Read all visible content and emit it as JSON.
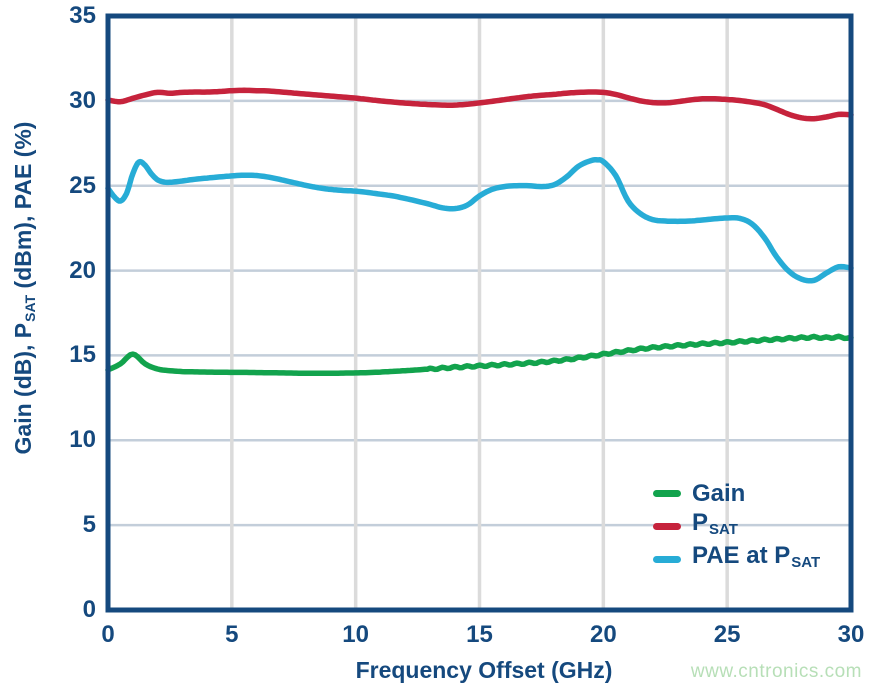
{
  "watermark": {
    "text": "www.cntronics.com",
    "color": "#B7DFB7"
  },
  "colors": {
    "navy": "#15497E",
    "grid_horizontal": "#C3CEDA",
    "grid_vertical": "#DBDBDB",
    "background": "#FFFFFF",
    "gain_green": "#12A34D",
    "psat_red": "#C6233C",
    "pae_blue": "#27ACD6"
  },
  "chart_data": {
    "type": "line",
    "title": "",
    "xlabel": "Frequency Offset (GHz)",
    "ylabel": "Gain (dB), PSAT (dBm), PAE (%)",
    "ylabel_parts": [
      {
        "t": "Gain (dB), P"
      },
      {
        "t": "SAT",
        "sub": true
      },
      {
        "t": " (dBm), PAE (%)"
      }
    ],
    "xlim": [
      0,
      30
    ],
    "ylim": [
      0,
      35
    ],
    "xticks": [
      0,
      5,
      10,
      15,
      20,
      25,
      30
    ],
    "yticks": [
      0,
      5,
      10,
      15,
      20,
      25,
      30,
      35
    ],
    "grid": true,
    "legend": {
      "position": "lower-right",
      "entries": [
        {
          "id": "gain",
          "label": "Gain",
          "parts": [
            {
              "t": "Gain"
            }
          ],
          "color": "#12A34D"
        },
        {
          "id": "psat",
          "label": "PSAT",
          "parts": [
            {
              "t": "P"
            },
            {
              "t": "SAT",
              "sub": true
            }
          ],
          "color": "#C6233C"
        },
        {
          "id": "pae",
          "label": "PAE at PSAT",
          "parts": [
            {
              "t": "PAE at P"
            },
            {
              "t": "SAT",
              "sub": true
            }
          ],
          "color": "#27ACD6"
        }
      ]
    },
    "series": [
      {
        "id": "psat",
        "name": "PSAT",
        "color": "#C6233C",
        "x": [
          0,
          0.5,
          1,
          1.5,
          2,
          2.5,
          3,
          3.5,
          4,
          4.5,
          5,
          5.5,
          6,
          6.5,
          7,
          7.5,
          8,
          8.5,
          9,
          9.5,
          10,
          10.5,
          11,
          11.5,
          12,
          12.5,
          13,
          13.5,
          14,
          14.5,
          15,
          15.5,
          16,
          16.5,
          17,
          17.5,
          18,
          18.5,
          19,
          19.5,
          20,
          20.5,
          21,
          21.5,
          22,
          22.5,
          23,
          23.5,
          24,
          24.5,
          25,
          25.5,
          26,
          26.5,
          27,
          27.5,
          28,
          28.5,
          29,
          29.5,
          30
        ],
        "y": [
          30.05,
          29.95,
          30.15,
          30.35,
          30.5,
          30.45,
          30.5,
          30.52,
          30.52,
          30.55,
          30.6,
          30.62,
          30.6,
          30.58,
          30.52,
          30.46,
          30.4,
          30.34,
          30.28,
          30.22,
          30.16,
          30.08,
          30.0,
          29.93,
          29.87,
          29.82,
          29.78,
          29.75,
          29.75,
          29.8,
          29.88,
          29.97,
          30.07,
          30.17,
          30.26,
          30.33,
          30.38,
          30.45,
          30.5,
          30.52,
          30.5,
          30.38,
          30.18,
          30.0,
          29.9,
          29.88,
          29.95,
          30.05,
          30.12,
          30.12,
          30.08,
          30.02,
          29.92,
          29.78,
          29.5,
          29.2,
          29.0,
          28.95,
          29.05,
          29.2,
          29.18
        ]
      },
      {
        "id": "pae",
        "name": "PAE at PSAT",
        "color": "#27ACD6",
        "x": [
          0,
          0.25,
          0.5,
          0.75,
          1,
          1.25,
          1.5,
          1.75,
          2,
          2.25,
          2.5,
          3,
          3.5,
          4,
          4.5,
          5,
          5.5,
          6,
          6.5,
          7,
          7.5,
          8,
          8.5,
          9,
          9.5,
          10,
          10.5,
          11,
          11.5,
          12,
          12.5,
          13,
          13.5,
          14,
          14.5,
          15,
          15.5,
          16,
          16.5,
          17,
          17.5,
          18,
          18.5,
          19,
          19.5,
          19.75,
          20,
          20.5,
          21,
          21.5,
          22,
          22.5,
          23,
          23.5,
          24,
          24.5,
          25,
          25.5,
          26,
          26.5,
          27,
          27.5,
          28,
          28.5,
          29,
          29.5,
          30
        ],
        "y": [
          24.85,
          24.35,
          24.1,
          24.55,
          25.7,
          26.4,
          26.2,
          25.7,
          25.35,
          25.22,
          25.2,
          25.28,
          25.38,
          25.45,
          25.52,
          25.58,
          25.62,
          25.6,
          25.5,
          25.35,
          25.18,
          25.02,
          24.88,
          24.78,
          24.72,
          24.68,
          24.6,
          24.5,
          24.4,
          24.25,
          24.08,
          23.9,
          23.7,
          23.65,
          23.85,
          24.4,
          24.78,
          24.95,
          25.0,
          25.0,
          24.95,
          25.05,
          25.5,
          26.15,
          26.48,
          26.52,
          26.42,
          25.6,
          24.1,
          23.35,
          23.0,
          22.92,
          22.9,
          22.92,
          22.98,
          23.05,
          23.1,
          23.08,
          22.75,
          21.95,
          20.8,
          19.95,
          19.5,
          19.42,
          19.85,
          20.22,
          20.15
        ]
      },
      {
        "id": "gain",
        "name": "Gain",
        "color": "#12A34D",
        "x": [
          0,
          0.5,
          1,
          1.5,
          2,
          2.5,
          3,
          3.5,
          4,
          4.5,
          5,
          5.5,
          6,
          6.5,
          7,
          7.5,
          8,
          8.5,
          9,
          9.5,
          10,
          10.5,
          11,
          11.5,
          12,
          12.5,
          13,
          13.5,
          14,
          14.5,
          15,
          15.5,
          16,
          16.5,
          17,
          17.5,
          18,
          18.5,
          19,
          19.5,
          20,
          20.5,
          21,
          21.5,
          22,
          22.5,
          23,
          23.5,
          24,
          24.5,
          25,
          25.5,
          26,
          26.5,
          27,
          27.5,
          28,
          28.5,
          29,
          29.5,
          30
        ],
        "y": [
          14.15,
          14.5,
          15.08,
          14.5,
          14.2,
          14.1,
          14.05,
          14.03,
          14.02,
          14.01,
          14.0,
          14.0,
          13.99,
          13.98,
          13.97,
          13.96,
          13.95,
          13.95,
          13.95,
          13.96,
          13.97,
          13.99,
          14.02,
          14.06,
          14.1,
          14.15,
          14.2,
          14.25,
          14.3,
          14.34,
          14.38,
          14.42,
          14.46,
          14.5,
          14.55,
          14.6,
          14.67,
          14.75,
          14.85,
          14.96,
          15.07,
          15.18,
          15.28,
          15.38,
          15.46,
          15.52,
          15.58,
          15.63,
          15.68,
          15.72,
          15.76,
          15.81,
          15.86,
          15.91,
          15.95,
          16.0,
          16.04,
          16.07,
          16.04,
          16.08,
          16.0
        ],
        "ripple": {
          "start": 13,
          "end": 30,
          "amplitude": 0.05,
          "period": 0.5
        }
      }
    ]
  }
}
